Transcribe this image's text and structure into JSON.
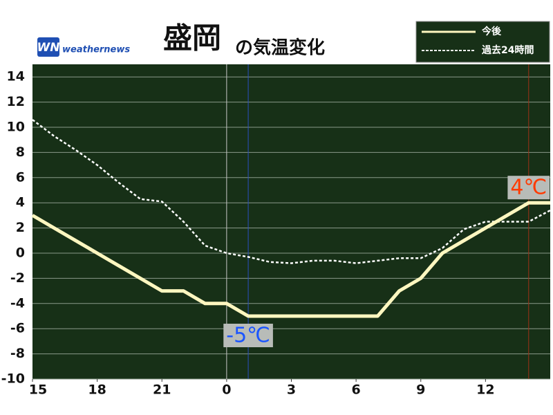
{
  "chart_data": {
    "type": "line",
    "title_main": "盛岡",
    "title_sub": "の気温変化",
    "logo_mark": "WN",
    "logo": "weathernews",
    "x": [
      0,
      1,
      2,
      3,
      4,
      5,
      6,
      7,
      8,
      9,
      10,
      11,
      12,
      13,
      14,
      15,
      16,
      17,
      18,
      19,
      20,
      21,
      22,
      23,
      24
    ],
    "series": [
      {
        "name": "今後",
        "color": "#fff7c0",
        "dashed": false,
        "values": [
          3,
          2,
          1,
          0,
          -1,
          -2,
          -3,
          -3,
          -4,
          -4,
          -5,
          -5,
          -5,
          -5,
          -5,
          -5,
          -5,
          -3,
          -2,
          0,
          1,
          2,
          3,
          4,
          4
        ]
      },
      {
        "name": "過去24時間",
        "color": "#ffffff",
        "dashed": true,
        "values": [
          10.6,
          9.3,
          8.2,
          7,
          5.6,
          4.3,
          4.1,
          2.5,
          0.6,
          0,
          -0.3,
          -0.7,
          -0.8,
          -0.6,
          -0.6,
          -0.8,
          -0.6,
          -0.4,
          -0.4,
          0.4,
          1.9,
          2.5,
          2.5,
          2.5,
          3.4
        ]
      }
    ],
    "xlim": [
      0,
      24
    ],
    "xticks": [
      {
        "value": 0,
        "label": "15"
      },
      {
        "value": 3,
        "label": "18"
      },
      {
        "value": 6,
        "label": "21"
      },
      {
        "value": 9,
        "label": "0"
      },
      {
        "value": 12,
        "label": "3"
      },
      {
        "value": 15,
        "label": "6"
      },
      {
        "value": 18,
        "label": "9"
      },
      {
        "value": 21,
        "label": "12"
      }
    ],
    "ylim": [
      -10,
      15
    ],
    "yticks": [
      -10,
      -8,
      -6,
      -4,
      -2,
      0,
      2,
      4,
      6,
      8,
      10,
      12,
      14
    ],
    "grid": true,
    "vlines": [
      {
        "x": 9,
        "color": "#c8c8c8"
      },
      {
        "x": 10,
        "color": "#2a4fc0"
      },
      {
        "x": 23,
        "color": "#a03018"
      }
    ],
    "annotations": [
      {
        "text": "-5℃",
        "x": 10,
        "y": -5,
        "color": "#1a55ff",
        "position": "below"
      },
      {
        "text": "4℃",
        "x": 23,
        "y": 4,
        "color": "#ff3a00",
        "position": "above"
      }
    ]
  }
}
